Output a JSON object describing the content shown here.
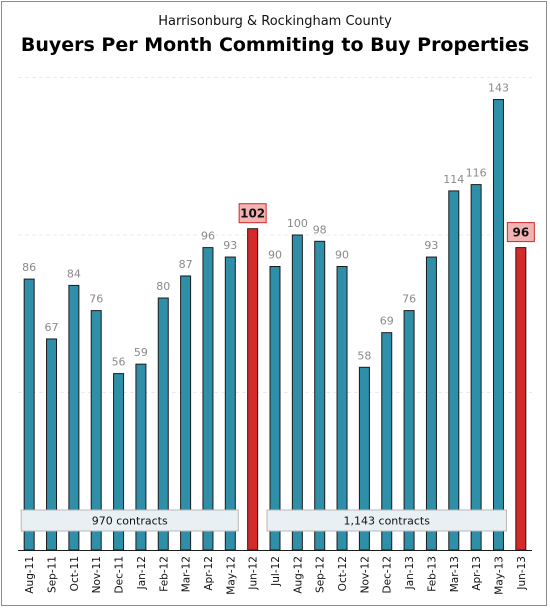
{
  "colors": {
    "bar": "#2f8ea8",
    "highlight_bar": "#d42a2a",
    "highlight_label_fill": "#f4b3b3",
    "highlight_label_border": "#cc2a2a",
    "value_label": "#8a8a8a"
  },
  "chart_data": {
    "type": "bar",
    "subtitle": "Harrisonburg & Rockingham County",
    "title": "Buyers Per Month Commiting to Buy Properties",
    "xlabel": "",
    "ylabel": "",
    "ylim": [
      0,
      160
    ],
    "grid": true,
    "categories": [
      "Aug-11",
      "Sep-11",
      "Oct-11",
      "Nov-11",
      "Dec-11",
      "Jan-12",
      "Feb-12",
      "Mar-12",
      "Apr-12",
      "May-12",
      "Jun-12",
      "Jul-12",
      "Aug-12",
      "Sep-12",
      "Oct-12",
      "Nov-12",
      "Dec-12",
      "Jan-13",
      "Feb-13",
      "Mar-13",
      "Apr-13",
      "May-13",
      "Jun-13"
    ],
    "values": [
      86,
      67,
      84,
      76,
      56,
      59,
      80,
      87,
      96,
      93,
      102,
      90,
      100,
      98,
      90,
      58,
      69,
      76,
      93,
      114,
      116,
      143,
      96
    ],
    "highlighted": [
      "Jun-12",
      "Jun-13"
    ],
    "annotations": [
      {
        "text": "970 contracts",
        "from": "Aug-11",
        "to": "May-12"
      },
      {
        "text": "1,143 contracts",
        "from": "Jul-12",
        "to": "May-13"
      }
    ]
  }
}
